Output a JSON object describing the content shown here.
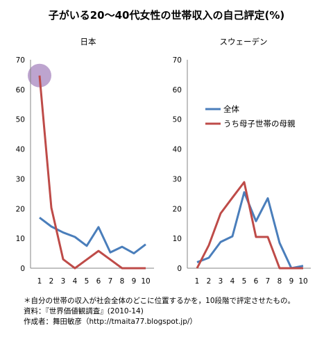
{
  "title": "子がいる20〜40代女性の世帯収入の自己評定(%)",
  "colors": {
    "all": "#4a7ebb",
    "single_mother": "#be4b48",
    "highlight": "#b294c7",
    "axis": "#868686"
  },
  "chart_data": [
    {
      "type": "line",
      "title": "日本",
      "categories": [
        "1",
        "2",
        "3",
        "4",
        "5",
        "6",
        "7",
        "8",
        "9",
        "10"
      ],
      "ylim": [
        0,
        70
      ],
      "yticks": [
        "0",
        "10",
        "20",
        "30",
        "40",
        "50",
        "60",
        "70"
      ],
      "series": [
        {
          "name": "全体",
          "values": [
            17,
            14,
            12,
            10.5,
            7.5,
            13.8,
            5.3,
            7.2,
            5,
            8
          ]
        },
        {
          "name": "うち母子世帯の母親",
          "values": [
            64.7,
            20.3,
            3,
            0,
            2.9,
            5.8,
            2.9,
            0,
            0,
            0
          ]
        }
      ],
      "highlight_category": "1"
    },
    {
      "type": "line",
      "title": "スウェーデン",
      "categories": [
        "1",
        "2",
        "3",
        "4",
        "5",
        "6",
        "7",
        "8",
        "9",
        "10"
      ],
      "ylim": [
        0,
        70
      ],
      "yticks": [
        "0",
        "10",
        "20",
        "30",
        "40",
        "50",
        "60",
        "70"
      ],
      "series": [
        {
          "name": "全体",
          "values": [
            2,
            3.5,
            8.8,
            10.7,
            25.5,
            15.8,
            23.5,
            8.5,
            0,
            0.8
          ]
        },
        {
          "name": "うち母子世帯の母親",
          "values": [
            0,
            7.7,
            18.4,
            23.7,
            28.9,
            10.5,
            10.5,
            0,
            0,
            0
          ]
        }
      ]
    }
  ],
  "legend": {
    "items": [
      "全体",
      "うち母子世帯の母親"
    ]
  },
  "footnotes": [
    "＊自分の世帯の収入が社会全体のどこに位置するかを，10段階で評定させたもの。",
    "資料：『世界価値観調査』(2010-14)",
    "作成者：舞田敏彦（http://tmaita77.blogspot.jp/）"
  ]
}
